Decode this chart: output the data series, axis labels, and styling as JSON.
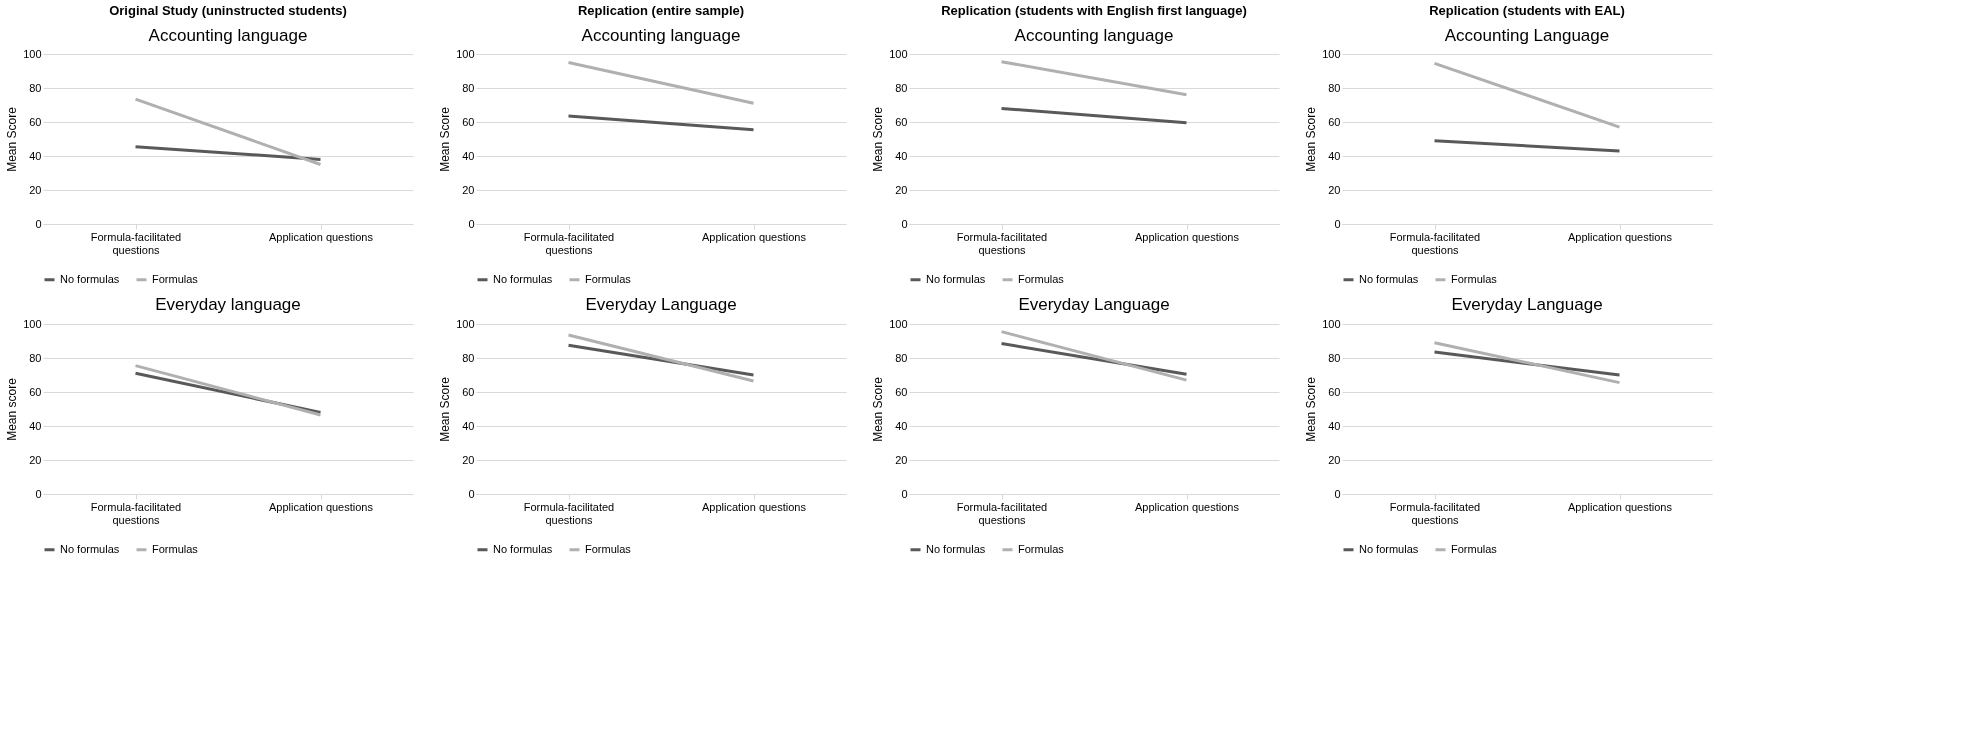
{
  "chart_data": [
    {
      "type": "line",
      "title": "Original Study (uninstructed students)",
      "subtitle": "Accounting language",
      "ylabel": "Mean Score",
      "categories": [
        "Formula-facilitated questions",
        "Application questions"
      ],
      "ylim": [
        0,
        100
      ],
      "yticks": [
        0,
        20,
        40,
        60,
        80,
        100
      ],
      "grid": "y",
      "legend": "bottom",
      "series": [
        {
          "name": "No formulas",
          "color": "#595959",
          "values": [
            45.5,
            38
          ]
        },
        {
          "name": "Formulas",
          "color": "#b0b0b0",
          "values": [
            73.5,
            35
          ]
        }
      ]
    },
    {
      "type": "line",
      "title": "Replication (entire sample)",
      "subtitle": "Accounting language",
      "ylabel": "Mean Score",
      "categories": [
        "Formula-facilitated questions",
        "Application questions"
      ],
      "ylim": [
        0,
        100
      ],
      "yticks": [
        0,
        20,
        40,
        60,
        80,
        100
      ],
      "grid": "y",
      "legend": "bottom",
      "series": [
        {
          "name": "No formulas",
          "color": "#595959",
          "values": [
            63.5,
            55.5
          ]
        },
        {
          "name": "Formulas",
          "color": "#b0b0b0",
          "values": [
            95,
            71
          ]
        }
      ]
    },
    {
      "type": "line",
      "title": "Replication (students with English first language)",
      "subtitle": "Accounting language",
      "ylabel": "Mean Score",
      "categories": [
        "Formula-facilitated questions",
        "Application questions"
      ],
      "ylim": [
        0,
        100
      ],
      "yticks": [
        0,
        20,
        40,
        60,
        80,
        100
      ],
      "grid": "y",
      "legend": "bottom",
      "series": [
        {
          "name": "No formulas",
          "color": "#595959",
          "values": [
            68,
            59.5
          ]
        },
        {
          "name": "Formulas",
          "color": "#b0b0b0",
          "values": [
            95.5,
            76
          ]
        }
      ]
    },
    {
      "type": "line",
      "title": "Replication (students with EAL)",
      "subtitle": "Accounting Language",
      "ylabel": "Mean Score",
      "categories": [
        "Formula-facilitated questions",
        "Application questions"
      ],
      "ylim": [
        0,
        100
      ],
      "yticks": [
        0,
        20,
        40,
        60,
        80,
        100
      ],
      "grid": "y",
      "legend": "bottom",
      "series": [
        {
          "name": "No formulas",
          "color": "#595959",
          "values": [
            49,
            43
          ]
        },
        {
          "name": "Formulas",
          "color": "#b0b0b0",
          "values": [
            94.5,
            57
          ]
        }
      ]
    },
    {
      "type": "line",
      "title": "Everyday language",
      "ylabel": "Mean score",
      "categories": [
        "Formula-facilitated questions",
        "Application questions"
      ],
      "ylim": [
        0,
        100
      ],
      "yticks": [
        0,
        20,
        40,
        60,
        80,
        100
      ],
      "grid": "y",
      "legend": "bottom",
      "series": [
        {
          "name": "No formulas",
          "color": "#595959",
          "values": [
            71,
            48
          ]
        },
        {
          "name": "Formulas",
          "color": "#b0b0b0",
          "values": [
            75.5,
            46.5
          ]
        }
      ]
    },
    {
      "type": "line",
      "title": "Everyday Language",
      "ylabel": "Mean Score",
      "categories": [
        "Formula-facilitated questions",
        "Application questions"
      ],
      "ylim": [
        0,
        100
      ],
      "yticks": [
        0,
        20,
        40,
        60,
        80,
        100
      ],
      "grid": "y",
      "legend": "bottom",
      "series": [
        {
          "name": "No formulas",
          "color": "#595959",
          "values": [
            87.5,
            70
          ]
        },
        {
          "name": "Formulas",
          "color": "#b0b0b0",
          "values": [
            93.5,
            66.5
          ]
        }
      ]
    },
    {
      "type": "line",
      "title": "Everyday Language",
      "ylabel": "Mean Score",
      "categories": [
        "Formula-facilitated questions",
        "Application questions"
      ],
      "ylim": [
        0,
        100
      ],
      "yticks": [
        0,
        20,
        40,
        60,
        80,
        100
      ],
      "grid": "y",
      "legend": "bottom",
      "series": [
        {
          "name": "No formulas",
          "color": "#595959",
          "values": [
            88.5,
            70.5
          ]
        },
        {
          "name": "Formulas",
          "color": "#b0b0b0",
          "values": [
            95.5,
            67
          ]
        }
      ]
    },
    {
      "type": "line",
      "title": "Everyday Language",
      "ylabel": "Mean Score",
      "categories": [
        "Formula-facilitated questions",
        "Application questions"
      ],
      "ylim": [
        0,
        100
      ],
      "yticks": [
        0,
        20,
        40,
        60,
        80,
        100
      ],
      "grid": "y",
      "legend": "bottom",
      "series": [
        {
          "name": "No formulas",
          "color": "#595959",
          "values": [
            83.5,
            70
          ]
        },
        {
          "name": "Formulas",
          "color": "#b0b0b0",
          "values": [
            89,
            65.5
          ]
        }
      ]
    }
  ]
}
